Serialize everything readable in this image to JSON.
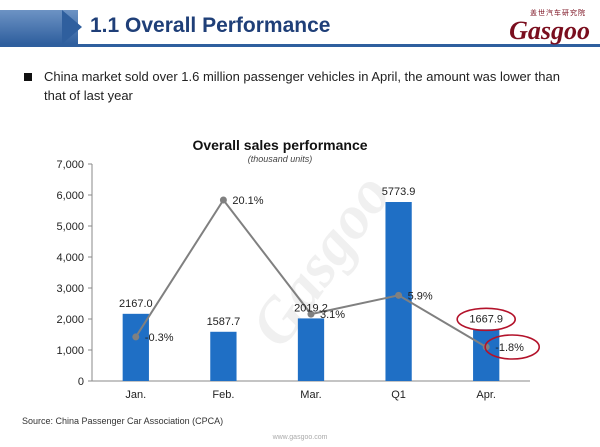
{
  "header": {
    "title": "1.1 Overall Performance",
    "logo_cn": "盖世汽车研究院",
    "logo_text": "Gasgoo"
  },
  "bullet": "China market sold over 1.6 million passenger vehicles in April, the amount was lower than that of last year",
  "watermark": "Gasgoo",
  "source": "Source: China Passenger Car Association (CPCA)",
  "footer_url": "www.gasgoo.com",
  "colors": {
    "bar": "#1f6fc5",
    "line": "#808080",
    "highlight": "#b3122a",
    "header": "#2f5f9e"
  },
  "chart_data": {
    "type": "bar",
    "title": "Overall sales performance",
    "subtitle": "(thousand units)",
    "categories": [
      "Jan.",
      "Feb.",
      "Mar.",
      "Q1",
      "Apr."
    ],
    "y_ticks": [
      "0",
      "1,000",
      "2,000",
      "3,000",
      "4,000",
      "5,000",
      "6,000",
      "7,000"
    ],
    "ylim": [
      0,
      7000
    ],
    "grid": false,
    "series": [
      {
        "values": [
          2167.0,
          1587.7,
          2019.2,
          5773.9,
          1667.9
        ],
        "labels": [
          "2167.0",
          "1587.7",
          "2019.2",
          "5773.9",
          "1667.9"
        ]
      },
      {
        "type": "line",
        "values": [
          -0.3,
          20.1,
          3.1,
          5.9,
          -1.8
        ],
        "labels": [
          "-0.3%",
          "20.1%",
          "3.1%",
          "5.9%",
          "-1.8%"
        ]
      }
    ],
    "highlighted": [
      "Apr."
    ]
  }
}
